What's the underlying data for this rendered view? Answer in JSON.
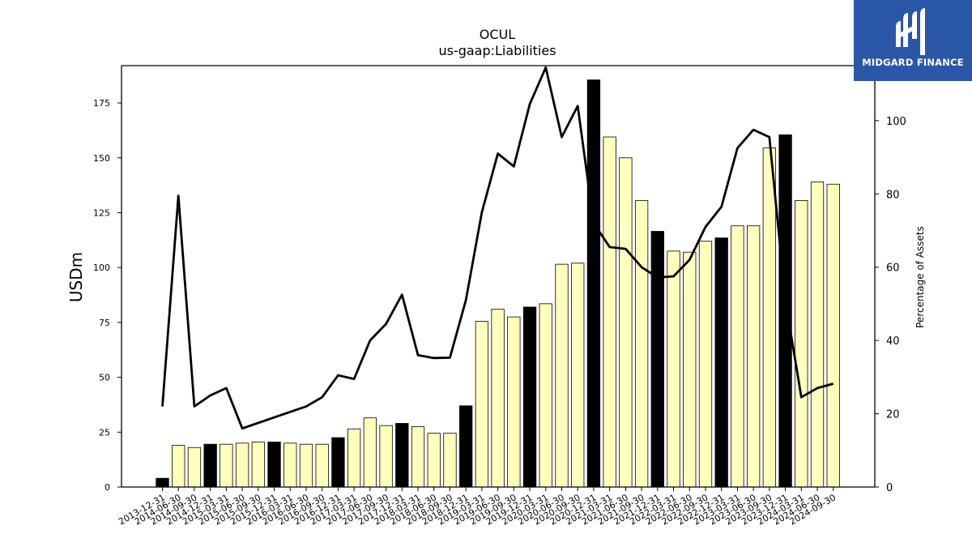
{
  "chart_data": {
    "type": "bar",
    "title": "OCUL",
    "subtitle": "us-gaap:Liabilities",
    "ylabel": "USDm",
    "y2label": "Percentage of Assets",
    "ylim": [
      0,
      192
    ],
    "y2lim": [
      0,
      115
    ],
    "yticks": [
      0,
      25,
      50,
      75,
      100,
      125,
      150,
      175
    ],
    "y2ticks": [
      0,
      20,
      40,
      60,
      80,
      100
    ],
    "categories": [
      "2013-12-31",
      "2014-06-30",
      "2014-09-30",
      "2014-12-31",
      "2015-03-31",
      "2015-06-30",
      "2015-09-30",
      "2015-12-31",
      "2016-03-31",
      "2016-06-30",
      "2016-09-30",
      "2016-12-31",
      "2017-03-31",
      "2017-06-30",
      "2017-09-30",
      "2017-12-31",
      "2018-03-31",
      "2018-06-30",
      "2018-09-30",
      "2018-12-31",
      "2019-03-31",
      "2019-06-30",
      "2019-09-30",
      "2019-12-31",
      "2020-03-31",
      "2020-06-30",
      "2020-09-30",
      "2020-12-31",
      "2021-03-31",
      "2021-06-30",
      "2021-09-30",
      "2021-12-31",
      "2022-03-31",
      "2022-06-30",
      "2022-09-30",
      "2022-12-31",
      "2023-03-31",
      "2023-06-30",
      "2023-09-30",
      "2023-12-31",
      "2024-03-31",
      "2024-06-30",
      "2024-09-30"
    ],
    "series": [
      {
        "type": "bar",
        "axis": "left",
        "values": [
          4,
          19,
          18,
          19.5,
          19.5,
          20,
          20.5,
          20.5,
          20,
          19.5,
          19.5,
          22.5,
          26.5,
          31.5,
          28,
          29,
          27.5,
          24.5,
          24.5,
          37,
          75.5,
          81,
          77.5,
          82,
          83.5,
          101.5,
          102,
          185.5,
          159.5,
          150,
          130.5,
          116.5,
          107.5,
          107,
          112,
          113.5,
          119,
          119,
          154.5,
          160.5,
          130.5,
          139,
          138
        ],
        "highlight": [
          true,
          false,
          false,
          true,
          false,
          false,
          false,
          true,
          false,
          false,
          false,
          true,
          false,
          false,
          false,
          true,
          false,
          false,
          false,
          true,
          false,
          false,
          false,
          true,
          false,
          false,
          false,
          true,
          false,
          false,
          false,
          true,
          false,
          false,
          false,
          true,
          false,
          false,
          false,
          true,
          false,
          false,
          false
        ]
      },
      {
        "type": "line",
        "axis": "right",
        "values": [
          22,
          79.5,
          22,
          25,
          27,
          16,
          17.5,
          19,
          20.5,
          22,
          24.5,
          30.5,
          29.5,
          40,
          44.5,
          52.5,
          36,
          35.2,
          35.3,
          51,
          75,
          91,
          87.5,
          104.5,
          114.5,
          95.5,
          104,
          72,
          65.5,
          65,
          60,
          57.2,
          57.5,
          62,
          71,
          76.5,
          92.5,
          97.5,
          95.5,
          51,
          24.5,
          27,
          28.2
        ]
      }
    ],
    "colors": {
      "bar": "#ffffbb",
      "bar_highlight": "#000000",
      "line": "#000000",
      "edge": "#000000"
    },
    "grid": false,
    "legend": "none"
  },
  "logo": {
    "text": "MIDGARD FINANCE",
    "icon": "midgard-logo-icon",
    "bg": "#2a56a8"
  }
}
